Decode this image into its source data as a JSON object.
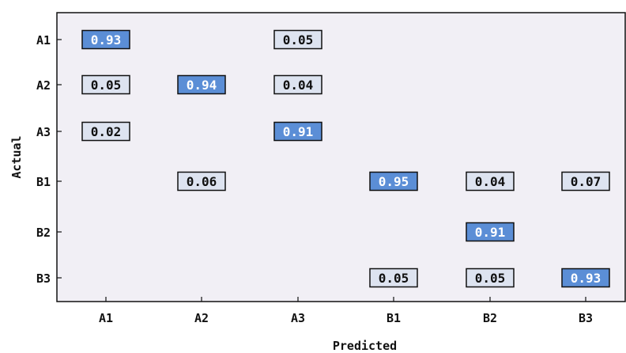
{
  "chart_data": {
    "type": "heatmap",
    "title": "",
    "xlabel": "Predicted",
    "ylabel": "Actual",
    "x_categories": [
      "A1",
      "A2",
      "A3",
      "B1",
      "B2",
      "B3"
    ],
    "y_categories": [
      "A1",
      "A2",
      "A3",
      "B1",
      "B2",
      "B3"
    ],
    "cells": [
      {
        "actual": "A1",
        "predicted": "A1",
        "value": 0.93,
        "label": "0.93"
      },
      {
        "actual": "A1",
        "predicted": "A3",
        "value": 0.05,
        "label": "0.05"
      },
      {
        "actual": "A2",
        "predicted": "A1",
        "value": 0.05,
        "label": "0.05"
      },
      {
        "actual": "A2",
        "predicted": "A2",
        "value": 0.94,
        "label": "0.94"
      },
      {
        "actual": "A2",
        "predicted": "A3",
        "value": 0.04,
        "label": "0.04"
      },
      {
        "actual": "A3",
        "predicted": "A1",
        "value": 0.02,
        "label": "0.02"
      },
      {
        "actual": "A3",
        "predicted": "A3",
        "value": 0.91,
        "label": "0.91"
      },
      {
        "actual": "B1",
        "predicted": "A2",
        "value": 0.06,
        "label": "0.06"
      },
      {
        "actual": "B1",
        "predicted": "B1",
        "value": 0.95,
        "label": "0.95"
      },
      {
        "actual": "B1",
        "predicted": "B2",
        "value": 0.04,
        "label": "0.04"
      },
      {
        "actual": "B1",
        "predicted": "B3",
        "value": 0.07,
        "label": "0.07"
      },
      {
        "actual": "B2",
        "predicted": "B2",
        "value": 0.91,
        "label": "0.91"
      },
      {
        "actual": "B3",
        "predicted": "B1",
        "value": 0.05,
        "label": "0.05"
      },
      {
        "actual": "B3",
        "predicted": "B2",
        "value": 0.05,
        "label": "0.05"
      },
      {
        "actual": "B3",
        "predicted": "B3",
        "value": 0.93,
        "label": "0.93"
      }
    ],
    "colors": {
      "high": "#5b8ed6",
      "low": "#dde3f0",
      "plot_background": "#f1eff5",
      "border": "#111111",
      "high_text": "#ffffff",
      "low_text": "#111111"
    },
    "grid": false,
    "legend": "none"
  }
}
